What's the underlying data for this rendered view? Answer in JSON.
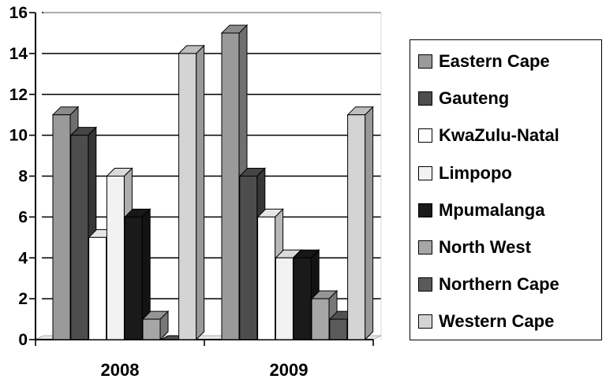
{
  "chart_data": {
    "type": "bar",
    "categories": [
      "2008",
      "2009"
    ],
    "series": [
      {
        "name": "Eastern Cape",
        "values": [
          11,
          15
        ],
        "color": "#9a9a9a"
      },
      {
        "name": "Gauteng",
        "values": [
          10,
          8
        ],
        "color": "#4d4d4d"
      },
      {
        "name": "KwaZulu-Natal",
        "values": [
          5,
          6
        ],
        "color": "#ffffff"
      },
      {
        "name": "Limpopo",
        "values": [
          8,
          4
        ],
        "color": "#f2f2f2"
      },
      {
        "name": "Mpumalanga",
        "values": [
          6,
          4
        ],
        "color": "#1a1a1a"
      },
      {
        "name": "North West",
        "values": [
          1,
          2
        ],
        "color": "#a6a6a6"
      },
      {
        "name": "Northern Cape",
        "values": [
          0,
          1
        ],
        "color": "#5a5a5a"
      },
      {
        "name": "Western Cape",
        "values": [
          14,
          11
        ],
        "color": "#d4d4d4"
      }
    ],
    "yticks": [
      "0",
      "2",
      "4",
      "6",
      "8",
      "10",
      "12",
      "14",
      "16"
    ],
    "ylim": [
      0,
      16
    ],
    "grid": true,
    "legend_position": "right",
    "title": "",
    "xlabel": "",
    "ylabel": ""
  }
}
